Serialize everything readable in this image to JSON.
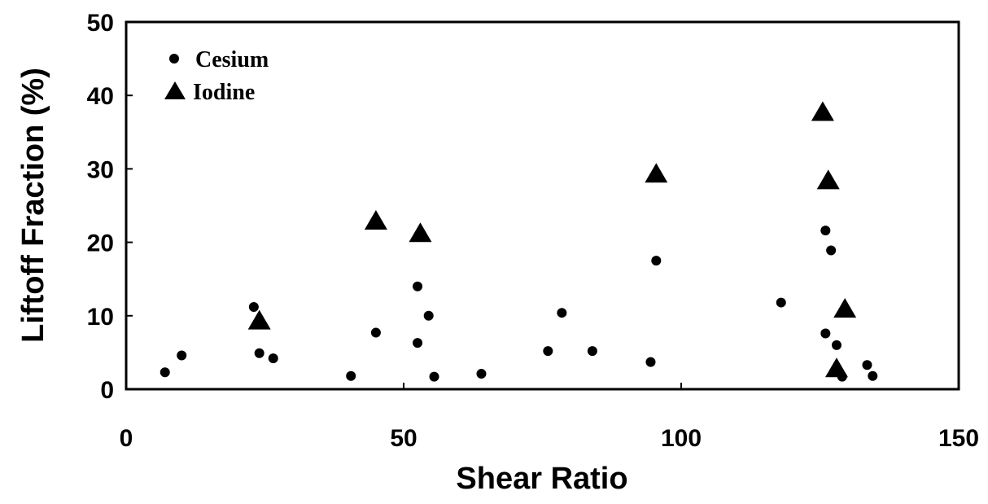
{
  "chart_data": {
    "type": "scatter",
    "xlabel": "Shear Ratio",
    "ylabel": "Liftoff Fraction (%)",
    "xlim": [
      0,
      150
    ],
    "ylim": [
      0,
      50
    ],
    "xticks": [
      "0",
      "50",
      "100",
      "150"
    ],
    "yticks": [
      "0",
      "10",
      "20",
      "30",
      "40",
      "50"
    ],
    "grid": false,
    "legend_position": "top-left",
    "series": [
      {
        "name": "Cesium",
        "marker": "circle",
        "color": "#000000",
        "points": [
          {
            "x": 7,
            "y": 2.3
          },
          {
            "x": 10,
            "y": 4.6
          },
          {
            "x": 23,
            "y": 11.2
          },
          {
            "x": 24,
            "y": 4.9
          },
          {
            "x": 26.5,
            "y": 4.2
          },
          {
            "x": 40.5,
            "y": 1.8
          },
          {
            "x": 45,
            "y": 7.7
          },
          {
            "x": 52.5,
            "y": 14
          },
          {
            "x": 52.5,
            "y": 6.3
          },
          {
            "x": 54.5,
            "y": 10
          },
          {
            "x": 55.5,
            "y": 1.7
          },
          {
            "x": 64,
            "y": 2.1
          },
          {
            "x": 76,
            "y": 5.2
          },
          {
            "x": 78.5,
            "y": 10.4
          },
          {
            "x": 84,
            "y": 5.2
          },
          {
            "x": 94.5,
            "y": 3.7
          },
          {
            "x": 95.5,
            "y": 17.5
          },
          {
            "x": 118,
            "y": 11.8
          },
          {
            "x": 126,
            "y": 21.6
          },
          {
            "x": 126,
            "y": 7.6
          },
          {
            "x": 127,
            "y": 18.9
          },
          {
            "x": 128,
            "y": 6
          },
          {
            "x": 129,
            "y": 1.7
          },
          {
            "x": 133.5,
            "y": 3.3
          },
          {
            "x": 134.5,
            "y": 1.8
          }
        ]
      },
      {
        "name": "Iodine",
        "marker": "triangle",
        "color": "#000000",
        "points": [
          {
            "x": 24,
            "y": 9.2
          },
          {
            "x": 45,
            "y": 22.8
          },
          {
            "x": 53,
            "y": 21.1
          },
          {
            "x": 95.5,
            "y": 29.2
          },
          {
            "x": 125.5,
            "y": 37.6
          },
          {
            "x": 126.5,
            "y": 28.3
          },
          {
            "x": 129.5,
            "y": 10.8
          },
          {
            "x": 128,
            "y": 2.7
          }
        ]
      }
    ]
  }
}
